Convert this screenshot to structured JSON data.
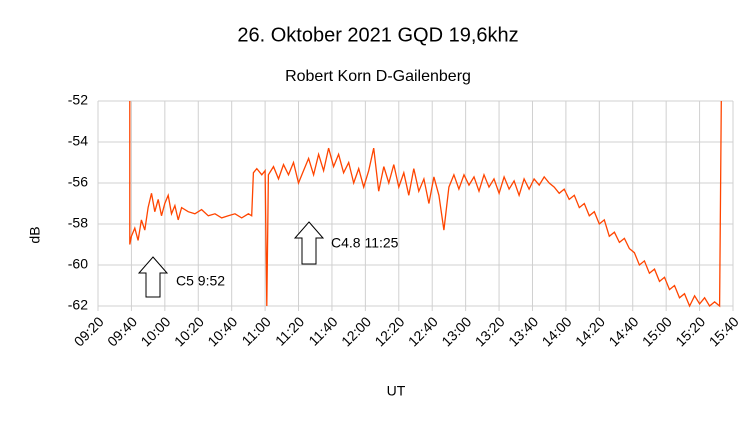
{
  "chart_data": {
    "type": "line",
    "title": "26. Oktober 2021 GQD 19,6khz",
    "subtitle": "Robert Korn D-Gailenberg",
    "x_label": "UT",
    "y_label": "dB",
    "color": "#ff4500",
    "grid": true,
    "annotations": [
      "C5 9:52",
      "C4.8 11:25"
    ],
    "xlim": [
      "09:20",
      "15:40"
    ],
    "xticks": [
      "09:20",
      "09:40",
      "10:00",
      "10:20",
      "10:40",
      "11:00",
      "11:20",
      "11:40",
      "12:00",
      "12:20",
      "12:40",
      "13:00",
      "13:20",
      "13:40",
      "14:00",
      "14:20",
      "14:40",
      "15:00",
      "15:20",
      "15:40"
    ],
    "ylim": [
      -62,
      -52
    ],
    "yticks": [
      -52,
      -54,
      -56,
      -58,
      -60,
      -62
    ],
    "x": [
      "09:39",
      "09:39",
      "09:40",
      "09:42",
      "09:44",
      "09:46",
      "09:48",
      "09:50",
      "09:52",
      "09:54",
      "09:56",
      "09:58",
      "10:00",
      "10:02",
      "10:04",
      "10:06",
      "10:08",
      "10:10",
      "10:14",
      "10:18",
      "10:22",
      "10:26",
      "10:30",
      "10:34",
      "10:38",
      "10:42",
      "10:46",
      "10:50",
      "10:52",
      "10:53",
      "10:55",
      "10:58",
      "11:00",
      "11:01",
      "11:02",
      "11:05",
      "11:08",
      "11:11",
      "11:14",
      "11:17",
      "11:20",
      "11:23",
      "11:26",
      "11:29",
      "11:32",
      "11:35",
      "11:38",
      "11:41",
      "11:44",
      "11:47",
      "11:50",
      "11:53",
      "11:56",
      "11:59",
      "12:02",
      "12:05",
      "12:08",
      "12:11",
      "12:14",
      "12:17",
      "12:20",
      "12:23",
      "12:26",
      "12:29",
      "12:32",
      "12:35",
      "12:38",
      "12:41",
      "12:44",
      "12:47",
      "12:50",
      "12:53",
      "12:56",
      "12:59",
      "13:02",
      "13:05",
      "13:08",
      "13:11",
      "13:14",
      "13:17",
      "13:20",
      "13:23",
      "13:26",
      "13:29",
      "13:32",
      "13:35",
      "13:38",
      "13:41",
      "13:44",
      "13:47",
      "13:50",
      "13:53",
      "13:56",
      "13:59",
      "14:02",
      "14:05",
      "14:08",
      "14:11",
      "14:14",
      "14:17",
      "14:20",
      "14:23",
      "14:26",
      "14:29",
      "14:32",
      "14:35",
      "14:38",
      "14:41",
      "14:44",
      "14:47",
      "14:50",
      "14:53",
      "14:56",
      "14:59",
      "15:02",
      "15:05",
      "15:08",
      "15:11",
      "15:14",
      "15:17",
      "15:20",
      "15:23",
      "15:26",
      "15:29",
      "15:32",
      "15:33"
    ],
    "values": [
      -52,
      -59,
      -58.6,
      -58.2,
      -58.8,
      -57.8,
      -58.3,
      -57.2,
      -56.5,
      -57.4,
      -56.8,
      -57.6,
      -57,
      -56.6,
      -57.5,
      -57.1,
      -57.8,
      -57.2,
      -57.4,
      -57.5,
      -57.3,
      -57.6,
      -57.5,
      -57.7,
      -57.6,
      -57.5,
      -57.7,
      -57.5,
      -57.6,
      -55.5,
      -55.3,
      -55.6,
      -55.4,
      -62,
      -55.6,
      -55.2,
      -55.8,
      -55.1,
      -55.6,
      -55,
      -56,
      -55.4,
      -54.8,
      -55.6,
      -54.6,
      -55.4,
      -54.3,
      -55.2,
      -54.6,
      -55.5,
      -55,
      -56,
      -55.3,
      -56.2,
      -55.4,
      -54.3,
      -56.4,
      -55.2,
      -56,
      -55.1,
      -56.2,
      -55.5,
      -56.6,
      -55.3,
      -56.4,
      -55.8,
      -57,
      -55.7,
      -56.6,
      -58.3,
      -56.2,
      -55.6,
      -56.3,
      -55.6,
      -56.1,
      -55.7,
      -56.4,
      -55.6,
      -56.2,
      -55.8,
      -56.5,
      -55.7,
      -56.3,
      -55.9,
      -56.6,
      -55.8,
      -56.3,
      -55.8,
      -56.1,
      -55.7,
      -56,
      -56.2,
      -56.5,
      -56.3,
      -56.8,
      -56.6,
      -57.2,
      -57,
      -57.6,
      -57.4,
      -58,
      -57.8,
      -58.6,
      -58.4,
      -58.9,
      -58.7,
      -59.2,
      -59.4,
      -60,
      -59.8,
      -60.4,
      -60.2,
      -60.8,
      -60.6,
      -61.2,
      -61,
      -61.6,
      -61.4,
      -62,
      -61.5,
      -61.9,
      -61.6,
      -62,
      -61.8,
      -62,
      -52
    ]
  }
}
